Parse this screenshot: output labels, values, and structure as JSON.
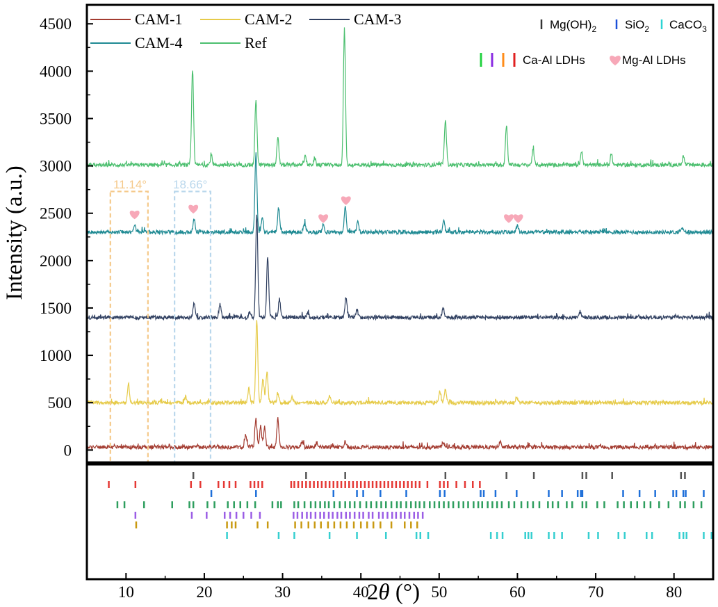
{
  "chart_data": {
    "type": "line",
    "xlabel_prefix": "2",
    "xlabel_symbol": "θ",
    "xlabel_suffix": " (°)",
    "ylabel": "Intensity (a.u.)",
    "xlim": [
      5,
      85
    ],
    "ylim": [
      -130,
      4700
    ],
    "xticks": [
      10,
      20,
      30,
      40,
      50,
      60,
      70,
      80
    ],
    "yticks": [
      0,
      500,
      1000,
      1500,
      2000,
      2500,
      3000,
      3500,
      4000,
      4500
    ],
    "grid": false,
    "legend_position": "top-left",
    "series": [
      {
        "name": "CAM-1",
        "color": "#a33b30",
        "baseline": 30,
        "peaks": [
          [
            25.3,
            130
          ],
          [
            26.6,
            300
          ],
          [
            27.2,
            220
          ],
          [
            27.7,
            200
          ],
          [
            29.4,
            300
          ],
          [
            32.5,
            60
          ],
          [
            34.4,
            50
          ],
          [
            38.0,
            60
          ],
          [
            50.5,
            60
          ],
          [
            57.8,
            60
          ]
        ]
      },
      {
        "name": "CAM-2",
        "color": "#e6cb4a",
        "baseline": 500,
        "peaks": [
          [
            10.3,
            190
          ],
          [
            17.6,
            60
          ],
          [
            25.7,
            150
          ],
          [
            26.7,
            880
          ],
          [
            27.5,
            250
          ],
          [
            28.0,
            330
          ],
          [
            29.4,
            100
          ],
          [
            31.2,
            60
          ],
          [
            36.0,
            70
          ],
          [
            50.1,
            120
          ],
          [
            50.8,
            140
          ],
          [
            59.9,
            70
          ]
        ]
      },
      {
        "name": "CAM-3",
        "color": "#2f3f60",
        "baseline": 1400,
        "peaks": [
          [
            18.7,
            150
          ],
          [
            22.0,
            140
          ],
          [
            25.8,
            70
          ],
          [
            26.7,
            1100
          ],
          [
            28.1,
            640
          ],
          [
            29.6,
            200
          ],
          [
            33.2,
            50
          ],
          [
            38.1,
            210
          ],
          [
            39.5,
            80
          ],
          [
            50.5,
            110
          ],
          [
            68.0,
            50
          ]
        ]
      },
      {
        "name": "CAM-4",
        "color": "#1f8a93",
        "baseline": 2300,
        "peaks": [
          [
            11.1,
            90
          ],
          [
            18.7,
            140
          ],
          [
            26.6,
            830
          ],
          [
            27.4,
            150
          ],
          [
            29.5,
            250
          ],
          [
            32.8,
            90
          ],
          [
            35.2,
            80
          ],
          [
            38.0,
            270
          ],
          [
            39.6,
            120
          ],
          [
            50.6,
            110
          ],
          [
            60.0,
            70
          ],
          [
            81.0,
            50
          ]
        ]
      },
      {
        "name": "Ref",
        "color": "#4cbf6f",
        "baseline": 3010,
        "peaks": [
          [
            18.5,
            1010
          ],
          [
            20.9,
            100
          ],
          [
            26.6,
            690
          ],
          [
            29.4,
            280
          ],
          [
            32.9,
            90
          ],
          [
            34.1,
            70
          ],
          [
            37.9,
            1440
          ],
          [
            50.8,
            490
          ],
          [
            58.6,
            420
          ],
          [
            62.0,
            160
          ],
          [
            68.2,
            150
          ],
          [
            72.0,
            110
          ],
          [
            81.2,
            90
          ]
        ]
      }
    ],
    "annotations": {
      "box_a": {
        "label": "11.14°",
        "color": "#f5c98a",
        "x_range": [
          8.0,
          12.8
        ],
        "y_range": [
          -130,
          2730
        ]
      },
      "box_b": {
        "label": "18.66°",
        "color": "#b9d7ec",
        "x_range": [
          16.2,
          20.8
        ],
        "y_range": [
          -130,
          2730
        ]
      },
      "mg_al_hearts": [
        [
          11.1,
          2490
        ],
        [
          18.6,
          2550
        ],
        [
          35.2,
          2450
        ],
        [
          38.1,
          2640
        ],
        [
          58.9,
          2450
        ],
        [
          60.1,
          2450
        ]
      ]
    },
    "phase_legend": {
      "row1": [
        {
          "bar_color": "#333333",
          "label": "Mg(OH)",
          "subscript": "2"
        },
        {
          "bar_color": "#1a4fd8",
          "label": "SiO",
          "subscript": "2"
        },
        {
          "bar_color": "#2bd4d4",
          "label": "CaCO",
          "subscript": "3"
        }
      ],
      "row2_bar_colors": [
        "#21d13f",
        "#8a2be2",
        "#ff8c1a",
        "#e02020"
      ],
      "row2_label_a": "Ca-Al LDHs",
      "heart_color": "#f7a8b8",
      "row2_label_b": "Mg-Al LDHs"
    },
    "reference_ticks": [
      {
        "color": "#555555",
        "positions": [
          18.6,
          33.0,
          38.0,
          50.8,
          58.6,
          62.1,
          68.3,
          68.8,
          72.1,
          80.9,
          81.4
        ]
      },
      {
        "color": "#e53935",
        "positions": [
          7.8,
          11.2,
          18.3,
          19.5,
          21.8,
          22.5,
          23.2,
          24.0,
          25.9,
          26.4,
          26.9,
          27.4,
          31.1,
          31.5,
          32.0,
          32.5,
          33.0,
          33.5,
          34.0,
          34.5,
          35.0,
          35.5,
          36.0,
          36.5,
          37.0,
          37.5,
          38.0,
          38.5,
          39.0,
          39.5,
          40.0,
          40.5,
          41.0,
          41.5,
          42.0,
          42.5,
          43.0,
          43.5,
          44.0,
          44.5,
          45.0,
          45.5,
          46.0,
          46.5,
          47.0,
          47.5,
          48.5,
          50.1,
          50.6,
          51.1,
          52.2,
          53.3,
          54.3,
          55.2
        ]
      },
      {
        "color": "#1e6fd9",
        "positions": [
          20.9,
          26.6,
          36.5,
          39.5,
          40.3,
          42.5,
          45.8,
          50.1,
          50.7,
          55.3,
          55.7,
          57.2,
          59.9,
          64.0,
          65.7,
          67.7,
          68.1,
          68.3,
          73.5,
          75.6,
          77.6,
          79.9,
          80.3,
          81.2,
          81.5,
          83.8
        ]
      },
      {
        "color": "#2e9e5e",
        "positions": [
          8.9,
          9.8,
          12.3,
          15.9,
          18.1,
          18.6,
          20.4,
          21.3,
          23.0,
          23.8,
          24.6,
          25.5,
          26.5,
          28.7,
          29.4,
          29.8,
          31.5,
          32.0,
          32.8,
          33.6,
          34.2,
          34.8,
          35.4,
          35.9,
          36.6,
          37.3,
          38.0,
          38.6,
          39.2,
          39.9,
          40.7,
          41.3,
          42.0,
          42.6,
          43.2,
          43.9,
          44.6,
          45.1,
          45.8,
          46.4,
          47.0,
          47.5,
          48.1,
          48.8,
          49.4,
          50.0,
          50.6,
          51.2,
          51.8,
          52.5,
          53.1,
          53.7,
          54.4,
          55.0,
          55.5,
          56.2,
          56.8,
          57.4,
          58.0,
          58.9,
          59.6,
          60.5,
          61.3,
          62.0,
          62.8,
          63.9,
          64.5,
          65.2,
          66.3,
          67.0,
          68.3,
          68.8,
          70.2,
          71.1,
          72.8,
          73.6,
          74.5,
          75.3,
          76.2,
          77.0,
          78.1,
          79.3,
          80.8,
          81.4,
          82.5,
          83.5
        ]
      },
      {
        "color": "#9b5de5",
        "positions": [
          11.2,
          18.4,
          20.3,
          22.6,
          23.3,
          24.1,
          25.0,
          26.0,
          27.1,
          31.4,
          31.9,
          32.5,
          33.1,
          33.6,
          34.2,
          34.8,
          35.3,
          35.9,
          36.4,
          37.0,
          37.5,
          38.1,
          38.6,
          39.2,
          39.8,
          40.3,
          41.0,
          41.5,
          42.3,
          42.8,
          43.4,
          44.0,
          44.5,
          45.1,
          45.6,
          46.2,
          46.8,
          47.3,
          47.9
        ]
      },
      {
        "color": "#c99a12",
        "positions": [
          11.3,
          22.9,
          23.5,
          24.0,
          26.8,
          28.1,
          31.6,
          32.4,
          33.3,
          34.1,
          34.9,
          35.8,
          36.6,
          37.4,
          38.2,
          39.1,
          40.0,
          40.8,
          41.6,
          42.5,
          43.9,
          45.6,
          46.4,
          47.2
        ]
      },
      {
        "color": "#36cfd0",
        "positions": [
          22.9,
          29.5,
          31.5,
          36.0,
          39.5,
          43.2,
          47.1,
          47.6,
          48.6,
          56.6,
          57.4,
          58.1,
          61.0,
          61.4,
          61.8,
          64.0,
          64.7,
          65.7,
          69.1,
          70.3,
          72.9,
          73.7,
          76.5,
          77.2,
          80.7,
          81.2,
          81.6,
          83.8,
          84.8
        ]
      }
    ]
  }
}
